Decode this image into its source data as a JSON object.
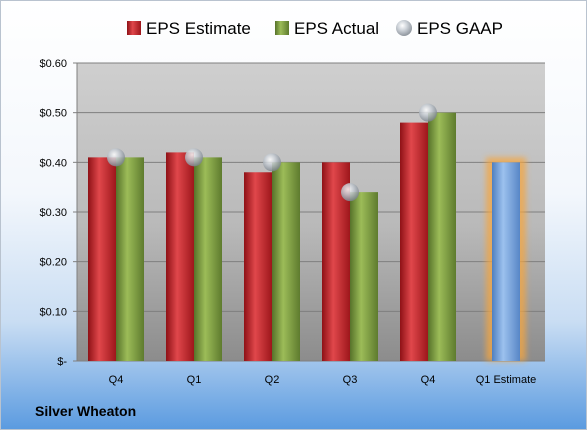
{
  "company": "Silver Wheaton",
  "colors": {
    "estimate": "#c0282d",
    "actual": "#7a9a3c",
    "gaap": "#aab2bb",
    "future_estimate": "#6f9fd8",
    "future_glow": "#f5a640"
  },
  "chart_data": {
    "type": "bar",
    "categories": [
      "Q4",
      "Q1",
      "Q2",
      "Q3",
      "Q4",
      "Q1 Estimate"
    ],
    "series": [
      {
        "name": "EPS Estimate",
        "values": [
          0.41,
          0.42,
          0.38,
          0.4,
          0.48,
          null
        ]
      },
      {
        "name": "EPS Actual",
        "values": [
          0.41,
          0.41,
          0.4,
          0.34,
          0.5,
          null
        ]
      },
      {
        "name": "EPS GAAP",
        "values": [
          0.41,
          0.41,
          0.4,
          0.34,
          0.5,
          null
        ]
      }
    ],
    "future_estimate": {
      "category": "Q1 Estimate",
      "value": 0.4
    },
    "y_tick_labels": [
      "$-",
      "$0.10",
      "$0.20",
      "$0.30",
      "$0.40",
      "$0.50",
      "$0.60"
    ],
    "y_tick_values": [
      0,
      0.1,
      0.2,
      0.3,
      0.4,
      0.5,
      0.6
    ],
    "ylim": [
      0,
      0.6
    ],
    "grid": true,
    "legend_position": "top"
  }
}
